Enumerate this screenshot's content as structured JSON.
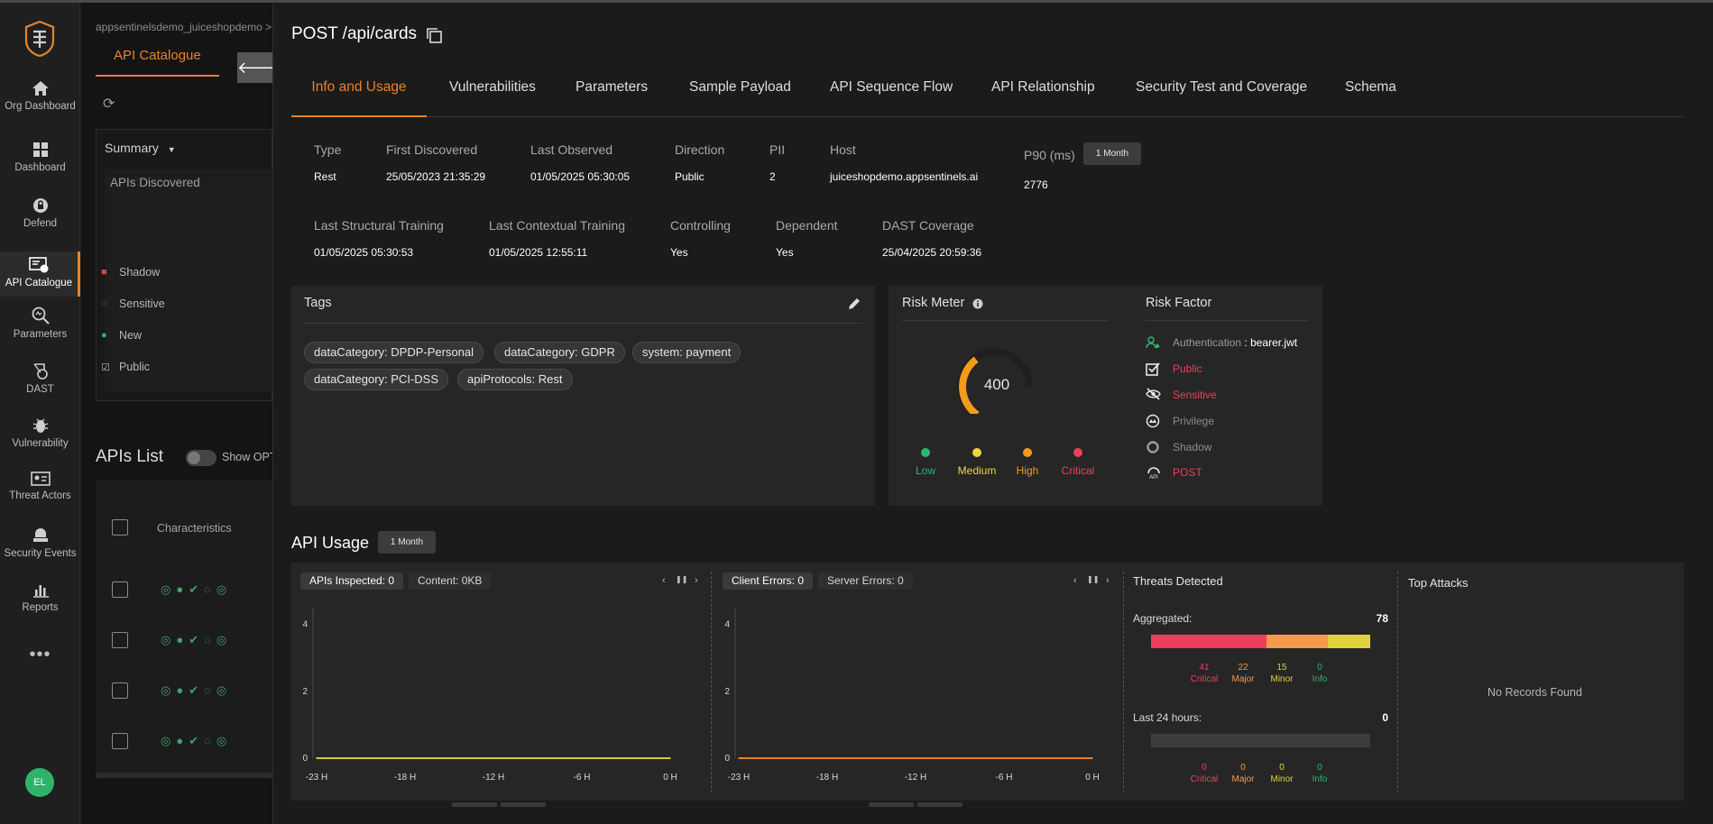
{
  "nav": {
    "items": [
      {
        "label": "Org Dashboard",
        "icon": "home-icon"
      },
      {
        "label": "Dashboard",
        "icon": "grid-icon"
      },
      {
        "label": "Defend",
        "icon": "lock-icon"
      },
      {
        "label": "API Catalogue",
        "icon": "api-catalogue-icon"
      },
      {
        "label": "Parameters",
        "icon": "parameters-icon"
      },
      {
        "label": "DAST",
        "icon": "dast-icon"
      },
      {
        "label": "Vulnerability",
        "icon": "bug-icon"
      },
      {
        "label": "Threat Actors",
        "icon": "id-card-icon"
      },
      {
        "label": "Security Events",
        "icon": "security-events-icon"
      },
      {
        "label": "Reports",
        "icon": "bar-chart-icon"
      }
    ],
    "more": "•••",
    "avatar": "EL"
  },
  "background": {
    "breadcrumb": "appsentinelsdemo_juiceshopdemo >",
    "tab": "API Catalogue",
    "summary": "Summary",
    "apis_discovered": "APIs Discovered",
    "categories": [
      "Shadow",
      "Sensitive",
      "New",
      "Public"
    ],
    "apis_list": "APIs List",
    "show_opt": "Show OPT",
    "characteristics": "Characteristics"
  },
  "drawer": {
    "title": "POST /api/cards",
    "tabs": [
      "Info and Usage",
      "Vulnerabilities",
      "Parameters",
      "Sample Payload",
      "API Sequence Flow",
      "API Relationship",
      "Security Test and Coverage",
      "Schema"
    ],
    "info_row1": [
      {
        "label": "Type",
        "value": "Rest"
      },
      {
        "label": "First Discovered",
        "value": "25/05/2023 21:35:29"
      },
      {
        "label": "Last Observed",
        "value": "01/05/2025 05:30:05"
      },
      {
        "label": "Direction",
        "value": "Public"
      },
      {
        "label": "PII",
        "value": "2"
      },
      {
        "label": "Host",
        "value": "juiceshopdemo.appsentinels.ai"
      }
    ],
    "p90": {
      "label": "P90 (ms)",
      "period": "1 Month",
      "value": "2776"
    },
    "info_row2": [
      {
        "label": "Last Structural Training",
        "value": "01/05/2025 05:30:53"
      },
      {
        "label": "Last Contextual Training",
        "value": "01/05/2025 12:55:11"
      },
      {
        "label": "Controlling",
        "value": "Yes"
      },
      {
        "label": "Dependent",
        "value": "Yes"
      },
      {
        "label": "DAST Coverage",
        "value": "25/04/2025 20:59:36"
      }
    ],
    "tags": {
      "title": "Tags",
      "items": [
        "dataCategory: DPDP-Personal",
        "dataCategory: GDPR",
        "system: payment",
        "dataCategory: PCI-DSS",
        "apiProtocols: Rest"
      ]
    },
    "risk_meter": {
      "title": "Risk Meter",
      "value": "400",
      "score": 400,
      "max": 1000,
      "legend": [
        {
          "label": "Low",
          "color": "#2bb673"
        },
        {
          "label": "Medium",
          "color": "#f2d43d"
        },
        {
          "label": "High",
          "color": "#f39b1c"
        },
        {
          "label": "Critical",
          "color": "#ef3e5c"
        }
      ]
    },
    "risk_factor": {
      "title": "Risk Factor",
      "items": [
        {
          "label": "Authentication",
          "value": ": bearer.jwt",
          "icon": "user-key-icon"
        },
        {
          "label": "Public",
          "icon": "public-check-icon"
        },
        {
          "label": "Sensitive",
          "icon": "eye-slash-icon"
        },
        {
          "label": "Privilege",
          "icon": "privilege-icon"
        },
        {
          "label": "Shadow",
          "icon": "shadow-circle-icon"
        },
        {
          "label": "POST",
          "icon": "api-method-icon"
        }
      ]
    },
    "usage": {
      "title": "API Usage",
      "period": "1 Month",
      "chart1": {
        "chips": [
          "APIs Inspected: 0",
          "Content: 0KB"
        ]
      },
      "chart2": {
        "chips": [
          "Client Errors: 0",
          "Server Errors: 0"
        ]
      },
      "nav_prev": "‹",
      "nav_next": "›",
      "pause": "❚❚",
      "threats": {
        "title": "Threats Detected",
        "aggregated_label": "Aggregated:",
        "aggregated_total": "78",
        "aggregated": [
          {
            "label": "Critical",
            "count": "41",
            "value": 41,
            "color": "#ef3e5c"
          },
          {
            "label": "Major",
            "count": "22",
            "value": 22,
            "color": "#f39b4a"
          },
          {
            "label": "Minor",
            "count": "15",
            "value": 15,
            "color": "#e0d23a"
          },
          {
            "label": "Info",
            "count": "0",
            "value": 0,
            "color": "#2bb673"
          }
        ],
        "last24_label": "Last 24 hours:",
        "last24_total": "0",
        "last24": [
          {
            "label": "Critical",
            "count": "0"
          },
          {
            "label": "Major",
            "count": "0"
          },
          {
            "label": "Minor",
            "count": "0"
          },
          {
            "label": "Info",
            "count": "0"
          }
        ]
      },
      "top_attacks": {
        "title": "Top Attacks",
        "empty": "No Records Found"
      }
    }
  },
  "chart_data": [
    {
      "type": "line",
      "title": "APIs Inspected",
      "x": [
        "-23 H",
        "-18 H",
        "-12 H",
        "-6 H",
        "0 H"
      ],
      "series": [
        {
          "name": "APIs Inspected",
          "values": [
            0,
            0,
            0,
            0,
            0
          ],
          "color": "#d8c63a"
        }
      ],
      "yticks": [
        "0",
        "2",
        "4"
      ],
      "ylim": [
        0,
        4.5
      ]
    },
    {
      "type": "line",
      "title": "Client Errors",
      "x": [
        "-23 H",
        "-18 H",
        "-12 H",
        "-6 H",
        "0 H"
      ],
      "series": [
        {
          "name": "Client Errors",
          "values": [
            0,
            0,
            0,
            0,
            0
          ],
          "color": "#e8832a"
        }
      ],
      "yticks": [
        "0",
        "2",
        "4"
      ],
      "ylim": [
        0,
        4.5
      ]
    }
  ]
}
